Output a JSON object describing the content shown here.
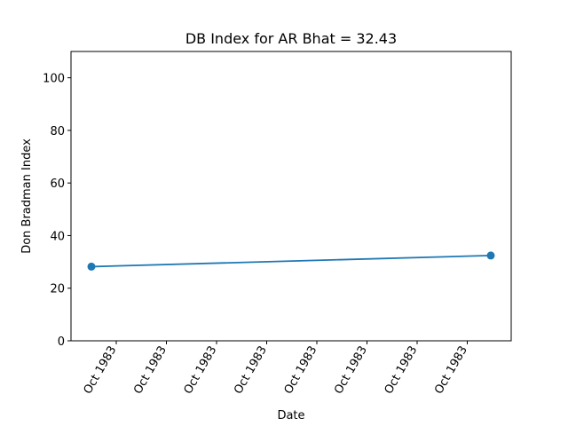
{
  "chart_data": {
    "type": "line",
    "title": "DB Index for AR Bhat = 32.43",
    "xlabel": "Date",
    "ylabel": "Don Bradman Index",
    "x_ticks": [
      "Oct 1983",
      "Oct 1983",
      "Oct 1983",
      "Oct 1983",
      "Oct 1983",
      "Oct 1983",
      "Oct 1983",
      "Oct 1983"
    ],
    "y_ticks": [
      0,
      20,
      40,
      60,
      80,
      100
    ],
    "ylim": [
      0,
      110
    ],
    "grid": false,
    "series": [
      {
        "points": [
          {
            "x": "Oct 1983",
            "y": 28.2
          },
          {
            "x": "Oct 1983",
            "y": 32.43
          }
        ],
        "color": "#1f77b4"
      }
    ]
  }
}
